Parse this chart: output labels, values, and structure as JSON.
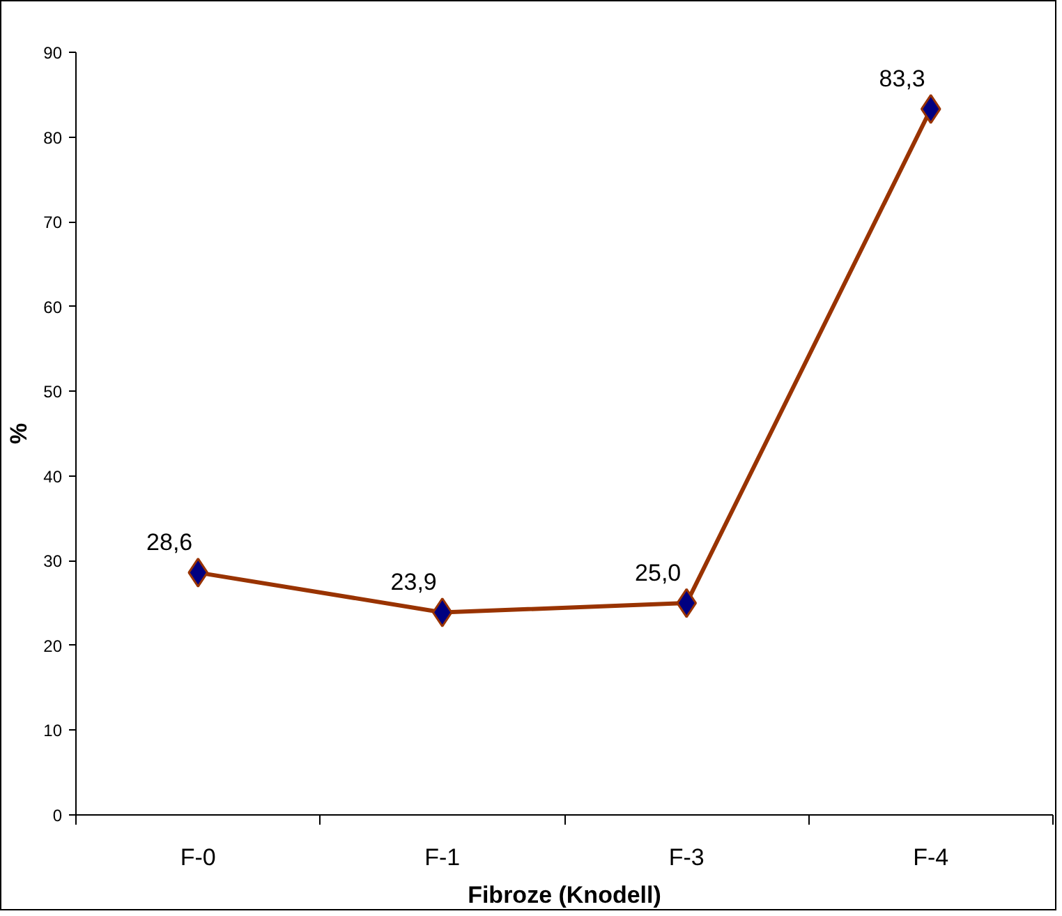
{
  "chart_data": {
    "type": "line",
    "xlabel": "Fibroze (Knodell)",
    "ylabel": "%",
    "categories": [
      "F-0",
      "F-1",
      "F-3",
      "F-4"
    ],
    "series": [
      {
        "color": "#993300",
        "values": [
          28.6,
          23.9,
          25.0,
          83.3
        ],
        "value_labels": [
          "28,6",
          "23,9",
          "25,0",
          "83,3"
        ]
      }
    ],
    "ylim": [
      0,
      90
    ],
    "yticks": [
      0,
      10,
      20,
      30,
      40,
      50,
      60,
      70,
      80,
      90
    ],
    "marker": "diamond",
    "line_style": "solid",
    "grid": false
  }
}
